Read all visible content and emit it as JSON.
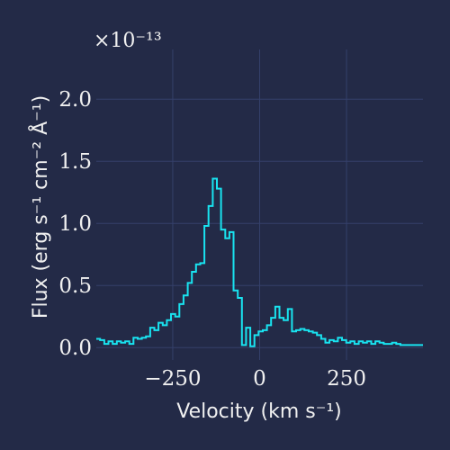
{
  "chart_data": {
    "type": "line",
    "drawstyle": "steps-mid",
    "xlabel": "Velocity (km s⁻¹)",
    "ylabel": "Flux (erg s⁻¹ cm⁻² Å⁻¹)",
    "y_offset_label": "×10⁻¹³",
    "xlim": [
      -470,
      470
    ],
    "ylim": [
      -0.1,
      2.4
    ],
    "xticks": [
      -250,
      0,
      250
    ],
    "xtick_labels": [
      "−250",
      "0",
      "250"
    ],
    "yticks": [
      0.0,
      0.5,
      1.0,
      1.5,
      2.0
    ],
    "ytick_labels": [
      "0.0",
      "0.5",
      "1.0",
      "1.5",
      "2.0"
    ],
    "grid": true,
    "colors": {
      "background": "#232a47",
      "line": "#19e3f0",
      "grid": "#34406a",
      "text": "#f0f0f0"
    },
    "series": [
      {
        "x": [
          -465,
          -453,
          -441,
          -429,
          -417,
          -405,
          -393,
          -381,
          -369,
          -357,
          -345,
          -333,
          -321,
          -309,
          -297,
          -285,
          -273,
          -261,
          -249,
          -237,
          -225,
          -213,
          -201,
          -189,
          -177,
          -165,
          -153,
          -141,
          -129,
          -117,
          -105,
          -93,
          -81,
          -69,
          -57,
          -45,
          -33,
          -21,
          -9,
          3,
          15,
          27,
          39,
          51,
          63,
          75,
          87,
          99,
          111,
          123,
          135,
          147,
          159,
          171,
          183,
          195,
          207,
          219,
          231,
          243,
          255,
          267,
          279,
          291,
          303,
          315,
          327,
          339,
          351,
          363,
          375,
          387,
          399,
          411,
          423,
          435,
          447,
          459,
          471
        ],
        "y": [
          0.07,
          0.06,
          0.03,
          0.05,
          0.03,
          0.05,
          0.04,
          0.05,
          0.03,
          0.08,
          0.07,
          0.08,
          0.09,
          0.16,
          0.14,
          0.2,
          0.18,
          0.22,
          0.27,
          0.25,
          0.35,
          0.42,
          0.52,
          0.61,
          0.67,
          0.68,
          0.98,
          1.14,
          1.36,
          1.28,
          0.95,
          0.88,
          0.93,
          0.46,
          0.4,
          0.02,
          0.16,
          0.01,
          0.1,
          0.13,
          0.14,
          0.18,
          0.24,
          0.33,
          0.24,
          0.22,
          0.31,
          0.13,
          0.14,
          0.15,
          0.14,
          0.13,
          0.12,
          0.1,
          0.07,
          0.04,
          0.06,
          0.05,
          0.08,
          0.06,
          0.04,
          0.05,
          0.03,
          0.05,
          0.04,
          0.05,
          0.03,
          0.05,
          0.04,
          0.03,
          0.03,
          0.04,
          0.03,
          0.02,
          0.02,
          0.02,
          0.02,
          0.02,
          0.02
        ]
      }
    ]
  }
}
